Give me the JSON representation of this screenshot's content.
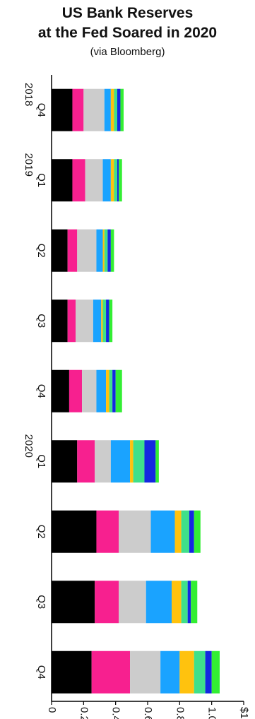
{
  "chart_data": {
    "type": "bar",
    "stacked": true,
    "orientation": "horizontal",
    "title": "US Bank Reserves at the Fed Soared in 2020",
    "title_lines": [
      "US Bank Reserves",
      "at the Fed Soared in 2020"
    ],
    "subtitle": "(via Bloomberg)",
    "categories": [
      "Q4",
      "Q1",
      "Q2",
      "Q3",
      "Q4",
      "Q1",
      "Q2",
      "Q3",
      "Q4"
    ],
    "year_labels": [
      {
        "category_index": 0,
        "text": "2018"
      },
      {
        "category_index": 1,
        "text": "2019"
      },
      {
        "category_index": 5,
        "text": "2020"
      }
    ],
    "xlim": [
      0,
      1.2
    ],
    "ticks": [
      0,
      0.2,
      0.4,
      0.6,
      0.8,
      1.0,
      1.2
    ],
    "tick_labels": [
      "0",
      "0.2",
      "0.4",
      "0.6",
      "0.8",
      "1.0",
      "$1.2"
    ],
    "grid": false,
    "legend": "none",
    "series": [
      {
        "color": "#000000",
        "values": [
          0.13,
          0.13,
          0.1,
          0.1,
          0.11,
          0.16,
          0.28,
          0.27,
          0.25
        ]
      },
      {
        "color": "#f7208f",
        "values": [
          0.07,
          0.08,
          0.06,
          0.05,
          0.08,
          0.11,
          0.14,
          0.15,
          0.24
        ]
      },
      {
        "color": "#cccccc",
        "values": [
          0.13,
          0.11,
          0.12,
          0.11,
          0.09,
          0.1,
          0.2,
          0.17,
          0.19
        ]
      },
      {
        "color": "#1aa3ff",
        "values": [
          0.04,
          0.05,
          0.04,
          0.05,
          0.06,
          0.12,
          0.15,
          0.16,
          0.12
        ]
      },
      {
        "color": "#ffc20e",
        "values": [
          0.02,
          0.02,
          0.01,
          0.01,
          0.02,
          0.02,
          0.04,
          0.06,
          0.09
        ]
      },
      {
        "color": "#3fe08a",
        "values": [
          0.02,
          0.02,
          0.02,
          0.02,
          0.02,
          0.07,
          0.05,
          0.04,
          0.07
        ]
      },
      {
        "color": "#1428e0",
        "values": [
          0.02,
          0.01,
          0.02,
          0.02,
          0.02,
          0.07,
          0.03,
          0.02,
          0.04
        ]
      },
      {
        "color": "#33ee33",
        "values": [
          0.02,
          0.02,
          0.02,
          0.02,
          0.04,
          0.02,
          0.04,
          0.04,
          0.05
        ]
      }
    ]
  }
}
